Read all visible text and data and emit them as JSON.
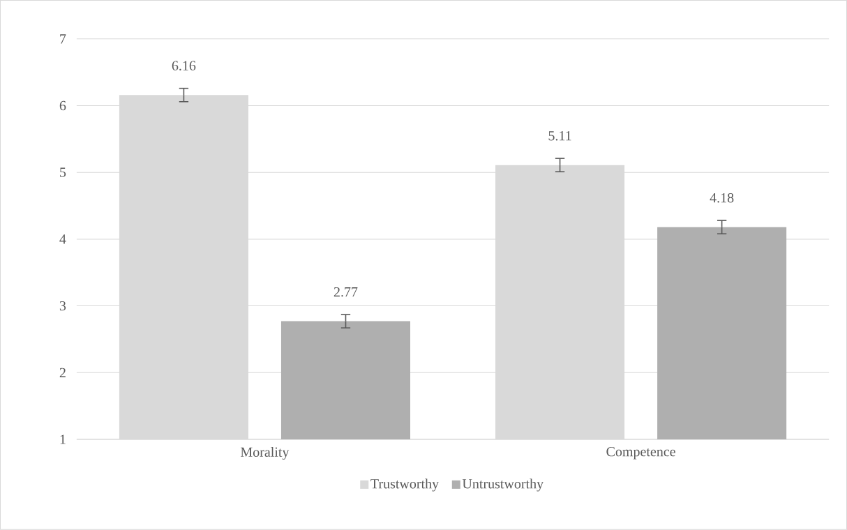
{
  "chart_data": {
    "type": "bar",
    "categories": [
      "Morality",
      "Competence"
    ],
    "series": [
      {
        "name": "Trustworthy",
        "color": "#d9d9d9",
        "values": [
          6.16,
          5.11
        ],
        "errors": [
          0.1,
          0.1
        ]
      },
      {
        "name": "Untrustworthy",
        "color": "#afafaf",
        "values": [
          2.77,
          4.18
        ],
        "errors": [
          0.1,
          0.1
        ]
      }
    ],
    "ylim": [
      1,
      7
    ],
    "yticks": [
      1,
      2,
      3,
      4,
      5,
      6,
      7
    ],
    "grid": "y",
    "legend": "bottom",
    "data_labels": true
  }
}
